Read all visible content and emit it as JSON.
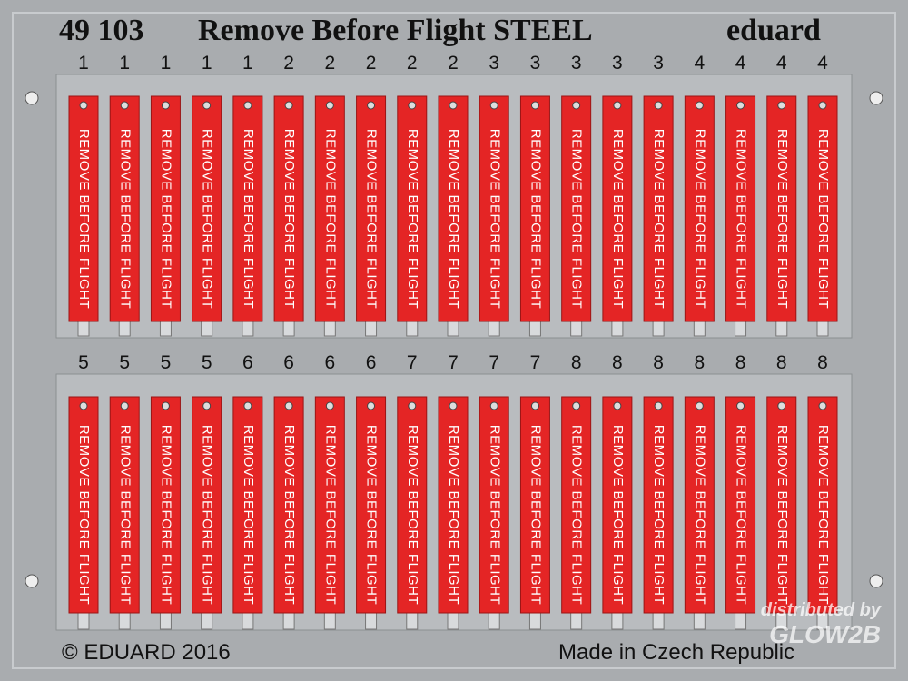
{
  "header": {
    "code": "49 103",
    "title": "Remove Before Flight STEEL",
    "brand": "eduard"
  },
  "rows": [
    {
      "tags": [
        {
          "number": "1",
          "text": "REMOVE BEFORE FLIGHT"
        },
        {
          "number": "1",
          "text": "REMOVE BEFORE FLIGHT"
        },
        {
          "number": "1",
          "text": "REMOVE BEFORE FLIGHT"
        },
        {
          "number": "1",
          "text": "REMOVE BEFORE FLIGHT"
        },
        {
          "number": "1",
          "text": "REMOVE BEFORE FLIGHT"
        },
        {
          "number": "2",
          "text": "REMOVE BEFORE FLIGHT"
        },
        {
          "number": "2",
          "text": "REMOVE BEFORE FLIGHT"
        },
        {
          "number": "2",
          "text": "REMOVE BEFORE FLIGHT"
        },
        {
          "number": "2",
          "text": "REMOVE BEFORE FLIGHT"
        },
        {
          "number": "2",
          "text": "REMOVE BEFORE FLIGHT"
        },
        {
          "number": "3",
          "text": "REMOVE BEFORE FLIGHT"
        },
        {
          "number": "3",
          "text": "REMOVE BEFORE FLIGHT"
        },
        {
          "number": "3",
          "text": "REMOVE BEFORE FLIGHT"
        },
        {
          "number": "3",
          "text": "REMOVE BEFORE FLIGHT"
        },
        {
          "number": "3",
          "text": "REMOVE BEFORE FLIGHT"
        },
        {
          "number": "4",
          "text": "REMOVE BEFORE FLIGHT"
        },
        {
          "number": "4",
          "text": "REMOVE BEFORE FLIGHT"
        },
        {
          "number": "4",
          "text": "REMOVE BEFORE FLIGHT"
        },
        {
          "number": "4",
          "text": "REMOVE BEFORE FLIGHT"
        }
      ]
    },
    {
      "tags": [
        {
          "number": "5",
          "text": "REMOVE BEFORE FLIGHT"
        },
        {
          "number": "5",
          "text": "REMOVE BEFORE FLIGHT"
        },
        {
          "number": "5",
          "text": "REMOVE BEFORE FLIGHT"
        },
        {
          "number": "5",
          "text": "REMOVE BEFORE FLIGHT"
        },
        {
          "number": "6",
          "text": "REMOVE BEFORE FLIGHT"
        },
        {
          "number": "6",
          "text": "REMOVE BEFORE FLIGHT"
        },
        {
          "number": "6",
          "text": "REMOVE BEFORE FLIGHT"
        },
        {
          "number": "6",
          "text": "REMOVE BEFORE FLIGHT"
        },
        {
          "number": "7",
          "text": "REMOVE BEFORE FLIGHT"
        },
        {
          "number": "7",
          "text": "REMOVE BEFORE FLIGHT"
        },
        {
          "number": "7",
          "text": "REMOVE BEFORE FLIGHT"
        },
        {
          "number": "7",
          "text": "REMOVE BEFORE FLIGHT"
        },
        {
          "number": "8",
          "text": "REMOVE BEFORE FLIGHT"
        },
        {
          "number": "8",
          "text": "REMOVE BEFORE FLIGHT"
        },
        {
          "number": "8",
          "text": "REMOVE BEFORE FLIGHT"
        },
        {
          "number": "8",
          "text": "REMOVE BEFORE FLIGHT"
        },
        {
          "number": "8",
          "text": "REMOVE BEFORE FLIGHT"
        },
        {
          "number": "8",
          "text": "REMOVE BEFORE FLIGHT"
        },
        {
          "number": "8",
          "text": "REMOVE BEFORE FLIGHT"
        }
      ]
    }
  ],
  "footer": {
    "copyright": "© EDUARD 2016",
    "origin": "Made in Czech Republic",
    "distributor_note": "distributed by",
    "distributor": "GLOW2B"
  }
}
